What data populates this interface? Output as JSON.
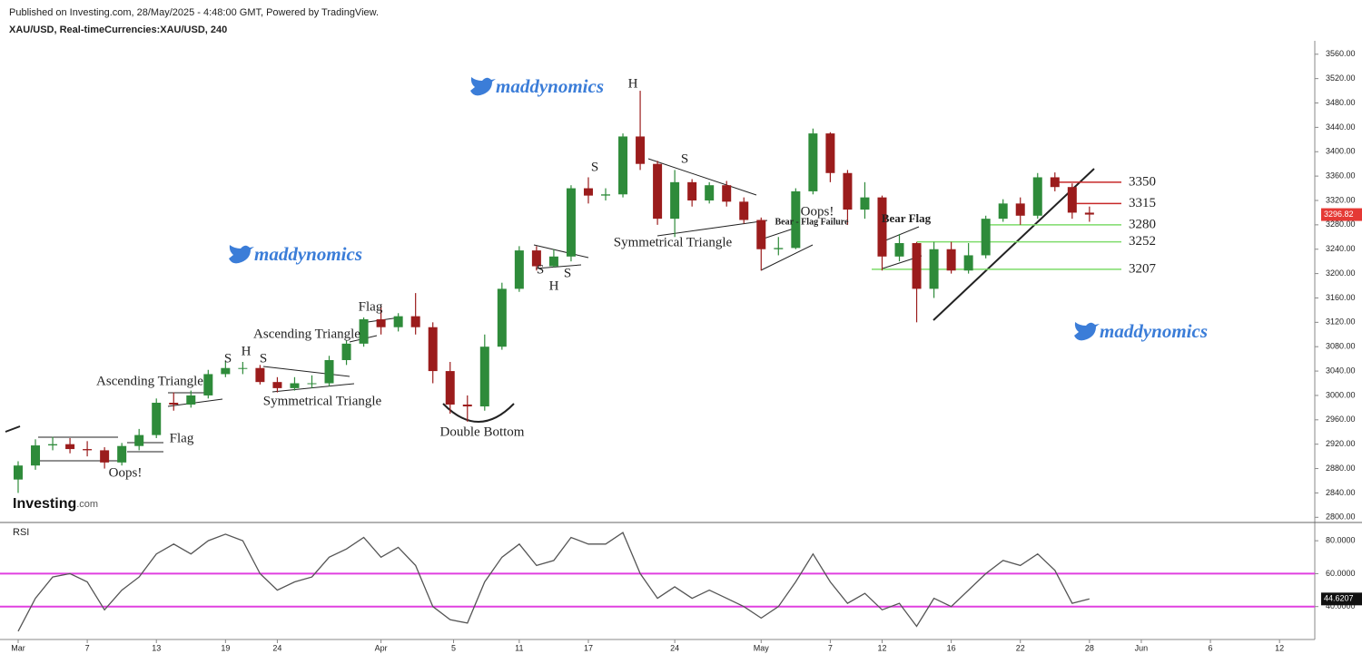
{
  "header": {
    "published": "Published on Investing.com, 28/May/2025 - 4:48:00 GMT, Powered by TradingView.",
    "symbol": "XAU/USD, Real-timeCurrencies:XAU/USD, 240"
  },
  "chart_data": {
    "type": "candlestick",
    "open": [
      2862,
      2885,
      2918,
      2920,
      2912,
      2910,
      2890,
      2917,
      2935,
      2988,
      2985,
      3000,
      3035,
      3045,
      3045,
      3022,
      3012,
      3020,
      3020,
      3058,
      3085,
      3125,
      3112,
      3130,
      3112,
      3040,
      2985,
      2982,
      3080,
      3175,
      3238,
      3212,
      3228,
      3340,
      3328,
      3330,
      3425,
      3380,
      3290,
      3350,
      3320,
      3345,
      3318,
      3288,
      3240,
      3242,
      3335,
      3430,
      3365,
      3305,
      3325,
      3228,
      3250,
      3175,
      3240,
      3205,
      3230,
      3290,
      3315,
      3295,
      3358,
      3342,
      3300
    ],
    "high": [
      2892,
      2928,
      2932,
      2930,
      2925,
      2915,
      2922,
      2945,
      2995,
      3005,
      3008,
      3042,
      3057,
      3055,
      3050,
      3030,
      3030,
      3033,
      3065,
      3090,
      3128,
      3148,
      3135,
      3168,
      3120,
      3055,
      3000,
      3100,
      3185,
      3245,
      3245,
      3240,
      3345,
      3358,
      3340,
      3430,
      3500,
      3385,
      3370,
      3355,
      3350,
      3352,
      3325,
      3292,
      3260,
      3340,
      3438,
      3432,
      3370,
      3350,
      3328,
      3265,
      3252,
      3252,
      3252,
      3250,
      3295,
      3322,
      3325,
      3365,
      3366,
      3348,
      3310
    ],
    "low": [
      2840,
      2878,
      2910,
      2905,
      2900,
      2880,
      2885,
      2910,
      2930,
      2975,
      2980,
      2995,
      3030,
      3035,
      3018,
      3005,
      3008,
      3012,
      3015,
      3050,
      3080,
      3100,
      3105,
      3100,
      3020,
      2970,
      2957,
      2975,
      3075,
      3170,
      3205,
      3210,
      3220,
      3315,
      3320,
      3325,
      3370,
      3280,
      3260,
      3310,
      3315,
      3310,
      3282,
      3205,
      3230,
      3240,
      3330,
      3350,
      3280,
      3290,
      3205,
      3220,
      3120,
      3160,
      3200,
      3200,
      3225,
      3285,
      3280,
      3290,
      3335,
      3290,
      3285
    ],
    "close": [
      2885,
      2918,
      2920,
      2912,
      2910,
      2890,
      2917,
      2935,
      2988,
      2985,
      3000,
      3035,
      3045,
      3045,
      3022,
      3012,
      3020,
      3020,
      3058,
      3085,
      3125,
      3112,
      3130,
      3112,
      3040,
      2985,
      2982,
      3080,
      3175,
      3238,
      3212,
      3228,
      3340,
      3328,
      3330,
      3425,
      3380,
      3290,
      3350,
      3320,
      3345,
      3318,
      3288,
      3240,
      3242,
      3335,
      3430,
      3365,
      3305,
      3325,
      3228,
      3250,
      3175,
      3240,
      3205,
      3230,
      3290,
      3315,
      3295,
      3358,
      3342,
      3300,
      3296.82
    ],
    "up_color": "#2e8b3a",
    "down_color": "#9b1c1c",
    "tag_color": "#e53935",
    "ylim": [
      2793,
      3582
    ],
    "yticks": [
      {
        "value": 2800,
        "label": "2800.00"
      },
      {
        "value": 2840,
        "label": "2840.00"
      },
      {
        "value": 2880,
        "label": "2880.00"
      },
      {
        "value": 2920,
        "label": "2920.00"
      },
      {
        "value": 2960,
        "label": "2960.00"
      },
      {
        "value": 3000,
        "label": "3000.00"
      },
      {
        "value": 3040,
        "label": "3040.00"
      },
      {
        "value": 3080,
        "label": "3080.00"
      },
      {
        "value": 3120,
        "label": "3120.00"
      },
      {
        "value": 3160,
        "label": "3160.00"
      },
      {
        "value": 3200,
        "label": "3200.00"
      },
      {
        "value": 3240,
        "label": "3240.00"
      },
      {
        "value": 3280,
        "label": "3280.00"
      },
      {
        "value": 3320,
        "label": "3320.00"
      },
      {
        "value": 3360,
        "label": "3360.00"
      },
      {
        "value": 3400,
        "label": "3400.00"
      },
      {
        "value": 3440,
        "label": "3440.00"
      },
      {
        "value": 3480,
        "label": "3480.00"
      },
      {
        "value": 3520,
        "label": "3520.00"
      },
      {
        "value": 3560,
        "label": "3560.00"
      }
    ],
    "xlim": [
      -1.05,
      75.04
    ],
    "xticks": [
      {
        "value": 0,
        "label": "Mar"
      },
      {
        "value": 4,
        "label": "7"
      },
      {
        "value": 8,
        "label": "13"
      },
      {
        "value": 12,
        "label": "19"
      },
      {
        "value": 15,
        "label": "24"
      },
      {
        "value": 21,
        "label": "Apr"
      },
      {
        "value": 25.2,
        "label": "5"
      },
      {
        "value": 29,
        "label": "11"
      },
      {
        "value": 33,
        "label": "17"
      },
      {
        "value": 38,
        "label": "24"
      },
      {
        "value": 43,
        "label": "May"
      },
      {
        "value": 47,
        "label": "7"
      },
      {
        "value": 50,
        "label": "12"
      },
      {
        "value": 54,
        "label": "16"
      },
      {
        "value": 58,
        "label": "22"
      },
      {
        "value": 62,
        "label": "28"
      },
      {
        "value": 65,
        "label": "Jun"
      },
      {
        "value": 69,
        "label": "6"
      },
      {
        "value": 73,
        "label": "12"
      }
    ],
    "levels": [
      {
        "value": 3350,
        "color": "#c62828"
      },
      {
        "value": 3315,
        "color": "#c62828"
      },
      {
        "value": 3280,
        "color": "#7ddc6a"
      },
      {
        "value": 3252,
        "color": "#7ddc6a"
      },
      {
        "value": 3207,
        "color": "#7ddc6a"
      }
    ],
    "annotations": [
      "Ascending Triangle",
      "Flag",
      "Oops!",
      "S",
      "H",
      "S",
      "Ascending Triangle",
      "Flag",
      "Symmetrical Triangle",
      "Double Bottom",
      "S",
      "H",
      "S",
      "S",
      "H",
      "S",
      "Symmetrical Triangle",
      "Bear - Flag Failure",
      "Oops!",
      "Bear Flag"
    ],
    "watermarks": [
      "maddynomics",
      "maddynomics",
      "maddynomics"
    ],
    "logo": "Investing",
    "logo_suffix": ".com",
    "rsi": {
      "title": "RSI",
      "color": "#555555",
      "band_color": "#e040e0",
      "values": [
        25,
        45,
        58,
        60,
        55,
        38,
        50,
        58,
        72,
        78,
        72,
        80,
        84,
        80,
        60,
        50,
        55,
        58,
        70,
        75,
        82,
        70,
        76,
        65,
        40,
        32,
        30,
        55,
        70,
        78,
        65,
        68,
        82,
        78,
        78,
        85,
        60,
        45,
        52,
        45,
        50,
        45,
        40,
        33,
        40,
        55,
        72,
        55,
        42,
        48,
        38,
        42,
        28,
        45,
        40,
        50,
        60,
        68,
        65,
        72,
        62,
        42,
        44.6207
      ],
      "ylim": [
        20,
        90
      ],
      "yticks": [
        {
          "value": 40,
          "label": "40.0000"
        },
        {
          "value": 60,
          "label": "60.0000"
        },
        {
          "value": 80,
          "label": "80.0000"
        }
      ],
      "bands": [
        60,
        40
      ]
    }
  }
}
